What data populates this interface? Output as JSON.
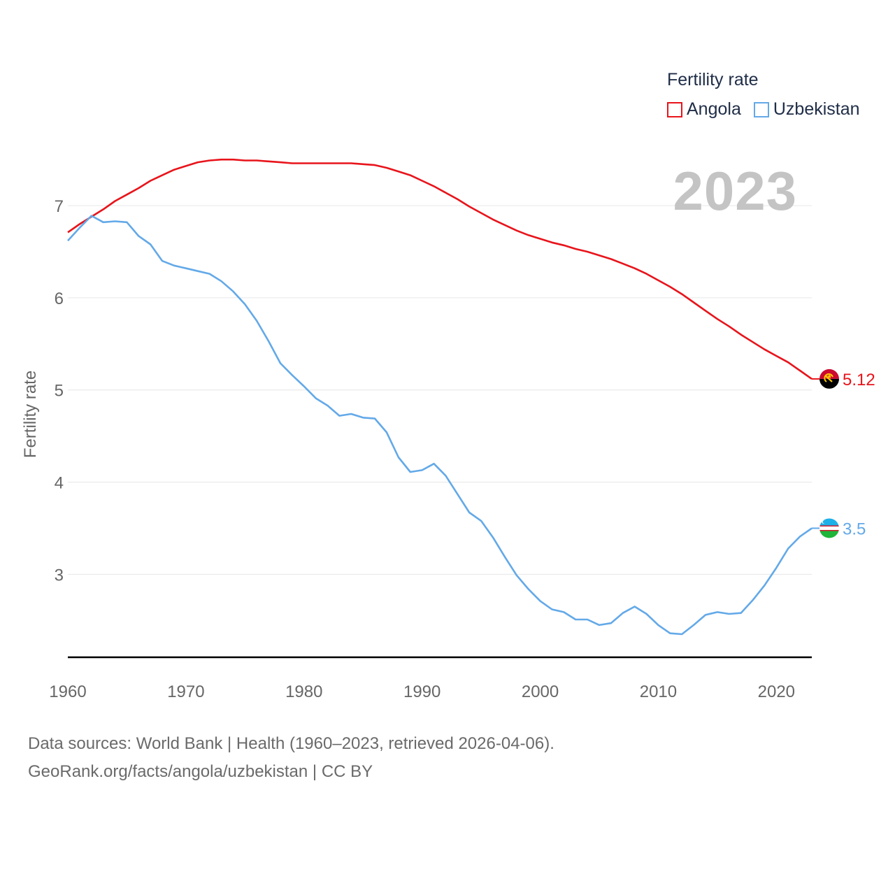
{
  "legend": {
    "title": "Fertility rate",
    "series": [
      {
        "name": "Angola",
        "color": "#e8141b"
      },
      {
        "name": "Uzbekistan",
        "color": "#63a9e8"
      }
    ]
  },
  "current_year": "2023",
  "footer": {
    "line1": "Data sources: World Bank | Health (1960–2023, retrieved 2026-04-06).",
    "line2": "GeoRank.org/facts/angola/uzbekistan | CC BY"
  },
  "chart_data": {
    "type": "line",
    "title": "Fertility rate",
    "xlabel": "",
    "ylabel": "Fertility rate",
    "x": [
      1960,
      1961,
      1962,
      1963,
      1964,
      1965,
      1966,
      1967,
      1968,
      1969,
      1970,
      1971,
      1972,
      1973,
      1974,
      1975,
      1976,
      1977,
      1978,
      1979,
      1980,
      1981,
      1982,
      1983,
      1984,
      1985,
      1986,
      1987,
      1988,
      1989,
      1990,
      1991,
      1992,
      1993,
      1994,
      1995,
      1996,
      1997,
      1998,
      1999,
      2000,
      2001,
      2002,
      2003,
      2004,
      2005,
      2006,
      2007,
      2008,
      2009,
      2010,
      2011,
      2012,
      2013,
      2014,
      2015,
      2016,
      2017,
      2018,
      2019,
      2020,
      2021,
      2022,
      2023
    ],
    "xlim": [
      1960,
      2023
    ],
    "ylim": [
      2.1,
      7.6
    ],
    "x_ticks": [
      "1960",
      "1970",
      "1980",
      "1990",
      "2000",
      "2010",
      "2020"
    ],
    "y_ticks": [
      "3",
      "4",
      "5",
      "6",
      "7"
    ],
    "grid": true,
    "legend_position": "top-right",
    "series": [
      {
        "name": "Angola",
        "color": "#e8141b",
        "end_label": "5.12",
        "values": [
          6.71,
          6.8,
          6.88,
          6.96,
          7.05,
          7.12,
          7.19,
          7.27,
          7.33,
          7.39,
          7.43,
          7.47,
          7.49,
          7.5,
          7.5,
          7.49,
          7.49,
          7.48,
          7.47,
          7.46,
          7.46,
          7.46,
          7.46,
          7.46,
          7.46,
          7.45,
          7.44,
          7.41,
          7.37,
          7.33,
          7.27,
          7.21,
          7.14,
          7.07,
          6.99,
          6.92,
          6.85,
          6.79,
          6.73,
          6.68,
          6.64,
          6.6,
          6.57,
          6.53,
          6.5,
          6.46,
          6.42,
          6.37,
          6.32,
          6.26,
          6.19,
          6.12,
          6.04,
          5.95,
          5.86,
          5.77,
          5.69,
          5.6,
          5.52,
          5.44,
          5.37,
          5.3,
          5.21,
          5.12
        ]
      },
      {
        "name": "Uzbekistan",
        "color": "#63a9e8",
        "end_label": "3.5",
        "values": [
          6.62,
          6.76,
          6.89,
          6.82,
          6.83,
          6.82,
          6.67,
          6.58,
          6.4,
          6.35,
          6.32,
          6.29,
          6.26,
          6.18,
          6.07,
          5.93,
          5.75,
          5.53,
          5.29,
          5.16,
          5.04,
          4.91,
          4.83,
          4.72,
          4.74,
          4.7,
          4.69,
          4.54,
          4.27,
          4.11,
          4.13,
          4.2,
          4.07,
          3.87,
          3.67,
          3.58,
          3.4,
          3.19,
          2.99,
          2.84,
          2.71,
          2.62,
          2.59,
          2.51,
          2.51,
          2.45,
          2.47,
          2.58,
          2.65,
          2.57,
          2.45,
          2.36,
          2.35,
          2.45,
          2.56,
          2.59,
          2.57,
          2.58,
          2.72,
          2.88,
          3.07,
          3.28,
          3.41,
          3.5
        ]
      }
    ]
  }
}
